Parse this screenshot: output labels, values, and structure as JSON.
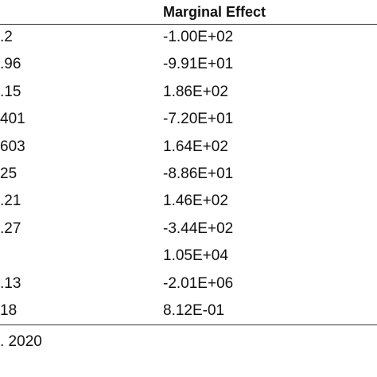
{
  "table": {
    "header": "Marginal Effect",
    "rows": [
      {
        "left": ".2",
        "effect": "-1.00E+02"
      },
      {
        "left": ".96",
        "effect": "-9.91E+01"
      },
      {
        "left": ".15",
        "effect": "1.86E+02"
      },
      {
        "left": "401",
        "effect": "-7.20E+01"
      },
      {
        "left": "603",
        "effect": "1.64E+02"
      },
      {
        "left": "25",
        "effect": "-8.86E+01"
      },
      {
        "left": ".21",
        "effect": "1.46E+02"
      },
      {
        "left": ".27",
        "effect": "-3.44E+02"
      },
      {
        "effect": "1.05E+04"
      },
      {
        "left": ".13",
        "effect": "-2.01E+06"
      },
      {
        "left": "18",
        "effect": "8.12E-01"
      }
    ]
  },
  "footer": ". 2020"
}
